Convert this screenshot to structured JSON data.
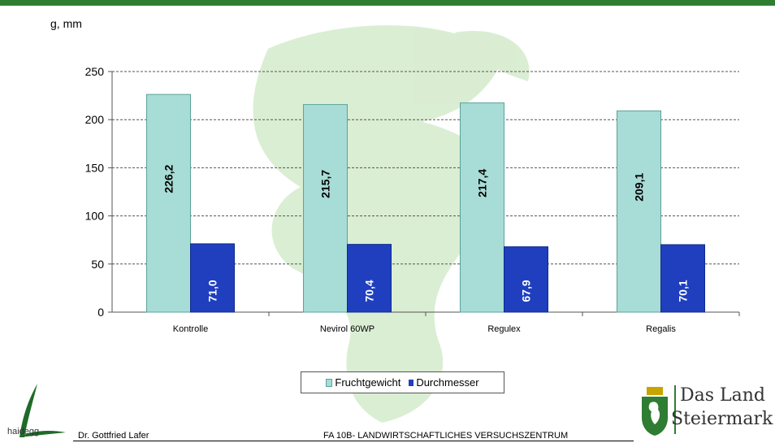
{
  "chart_data": {
    "type": "bar",
    "title": "",
    "units_label": "g, mm",
    "categories": [
      "Kontrolle",
      "Nevirol 60WP",
      "Regulex",
      "Regalis"
    ],
    "series": [
      {
        "name": "Fruchtgewicht",
        "values": [
          226.2,
          215.7,
          217.4,
          209.1
        ],
        "labels": [
          "226,2",
          "215,7",
          "217,4",
          "209,1"
        ],
        "color": "#a8dcd6"
      },
      {
        "name": "Durchmesser",
        "values": [
          71.0,
          70.4,
          67.9,
          70.1
        ],
        "labels": [
          "71,0",
          "70,4",
          "67,9",
          "70,1"
        ],
        "color": "#1f3fbf"
      }
    ],
    "ylim": [
      0,
      250
    ],
    "yticks": [
      0,
      50,
      100,
      150,
      200,
      250
    ],
    "grid": "dashed horizontal",
    "legend_position": "bottom"
  },
  "footer": {
    "logo_text": "haidegg",
    "author": "Dr. Gottfried Lafer",
    "institute": "FA 10B- LANDWIRTSCHAFTLICHES VERSUCHSZENTRUM",
    "land_line1": "Das Land",
    "land_line2": "Steiermark"
  },
  "colors": {
    "topbar": "#2e7d32",
    "watermark": "#cfe7c4"
  },
  "icons": {
    "left_logo": "leaf-logo-icon",
    "right_logo": "styrian-panther-crest-icon",
    "background": "panther-watermark-icon"
  }
}
